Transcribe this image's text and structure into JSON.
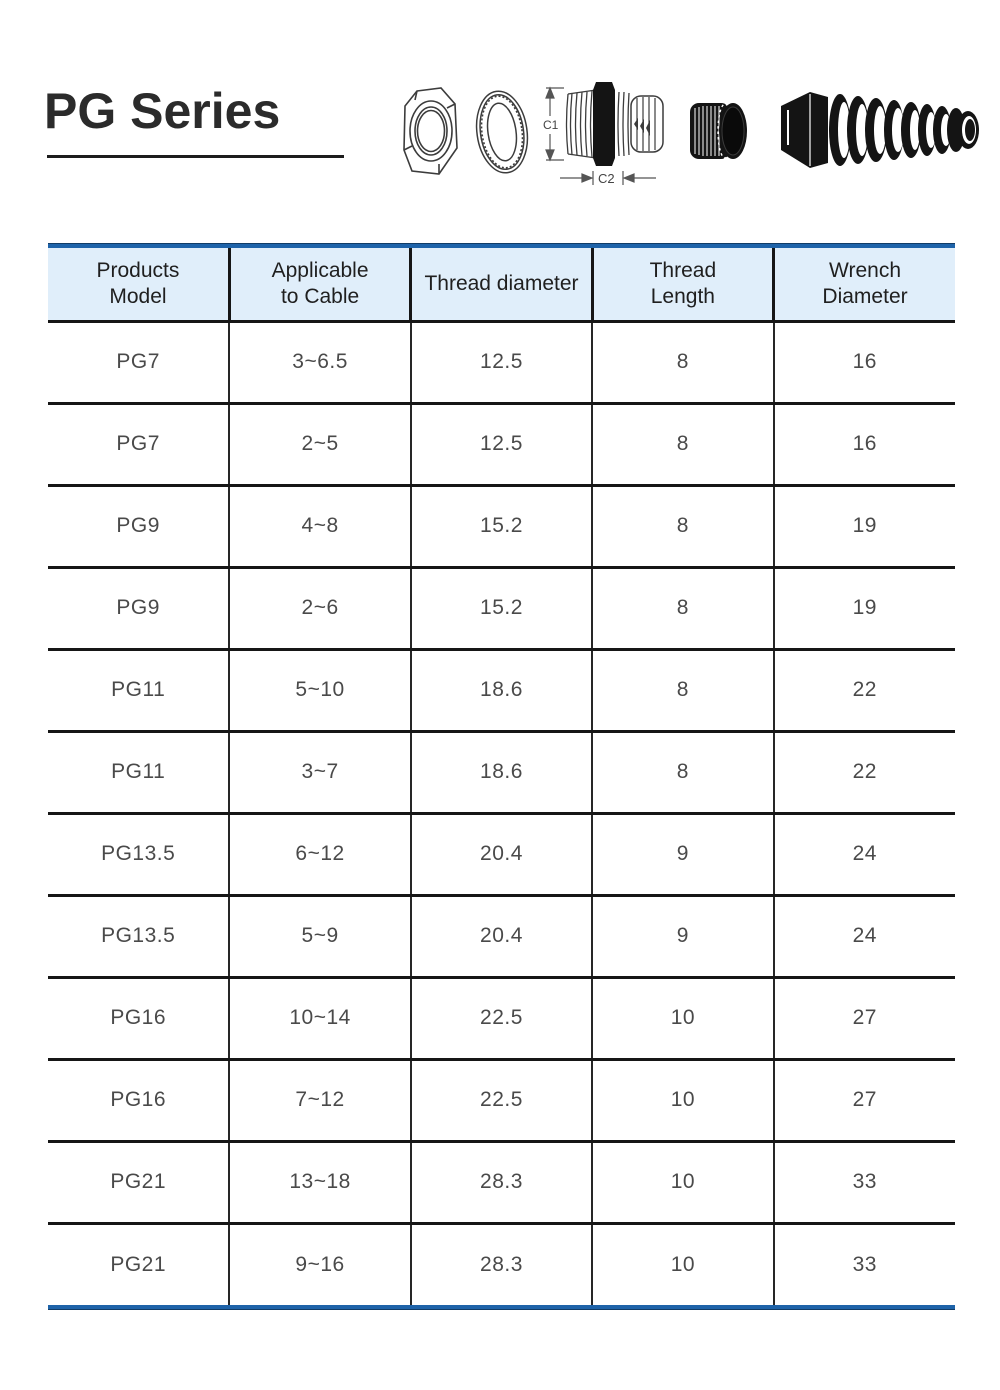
{
  "page_title": "PG Series",
  "figures": {
    "dim_labels": {
      "c1": "C1",
      "c2": "C2"
    },
    "items": [
      {
        "name": "hex-locknut-drawing"
      },
      {
        "name": "seal-ring-drawing"
      },
      {
        "name": "gland-body-drawing"
      },
      {
        "name": "dome-cap-image"
      },
      {
        "name": "spiral-strain-relief-image"
      }
    ]
  },
  "table": {
    "columns": [
      "Products\nModel",
      "Applicable\nto Cable",
      "Thread diameter",
      "Thread\nLength",
      "Wrench\nDiameter"
    ],
    "rows": [
      [
        "PG7",
        "3~6.5",
        "12.5",
        "8",
        "16"
      ],
      [
        "PG7",
        "2~5",
        "12.5",
        "8",
        "16"
      ],
      [
        "PG9",
        "4~8",
        "15.2",
        "8",
        "19"
      ],
      [
        "PG9",
        "2~6",
        "15.2",
        "8",
        "19"
      ],
      [
        "PG11",
        "5~10",
        "18.6",
        "8",
        "22"
      ],
      [
        "PG11",
        "3~7",
        "18.6",
        "8",
        "22"
      ],
      [
        "PG13.5",
        "6~12",
        "20.4",
        "9",
        "24"
      ],
      [
        "PG13.5",
        "5~9",
        "20.4",
        "9",
        "24"
      ],
      [
        "PG16",
        "10~14",
        "22.5",
        "10",
        "27"
      ],
      [
        "PG16",
        "7~12",
        "22.5",
        "10",
        "27"
      ],
      [
        "PG21",
        "13~18",
        "28.3",
        "10",
        "33"
      ],
      [
        "PG21",
        "9~16",
        "28.3",
        "10",
        "33"
      ]
    ]
  },
  "colors": {
    "accent_blue": "#1e63a9",
    "accent_blue_dark": "#123c66",
    "header_bg": "#e0eefa",
    "grid_black": "#161616",
    "cell_text": "#4a4a4a",
    "title_text": "#2b2b2b"
  }
}
